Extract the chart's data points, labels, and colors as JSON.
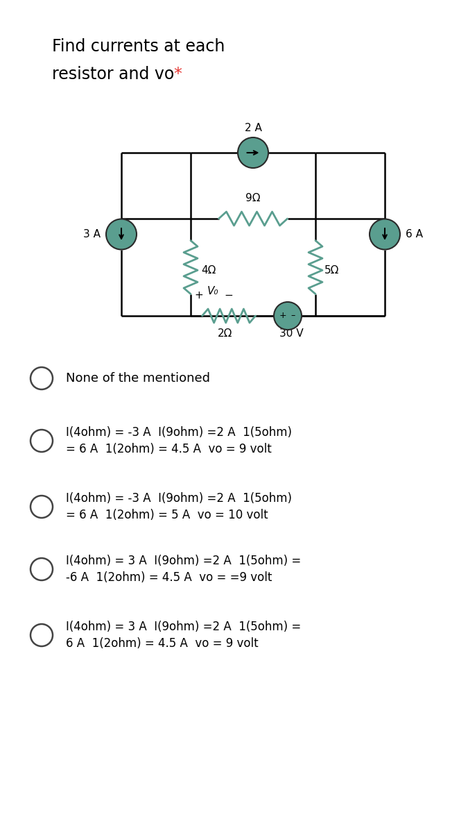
{
  "title_line1": "Find currents at each",
  "title_line2": "resistor and vo ",
  "title_star": "*",
  "bg_color": "#ffffff",
  "node_color": "#5a9e8f",
  "wire_color": "#000000",
  "label_2A": "2 A",
  "label_9ohm": "9Ω",
  "label_4ohm": "4Ω",
  "label_5ohm": "5Ω",
  "label_2ohm": "2Ω",
  "label_3A": "3 A",
  "label_6A": "6 A",
  "label_30V": "30 V",
  "options": [
    {
      "text_line1": "None of the mentioned",
      "text_line2": ""
    },
    {
      "text_line1": "I(4ohm) = -3 A  I(9ohm) =2 A  1(5ohm)",
      "text_line2": "= 6 A  1(2ohm) = 4.5 A  vo = 9 volt"
    },
    {
      "text_line1": "I(4ohm) = -3 A  I(9ohm) =2 A  1(5ohm)",
      "text_line2": "= 6 A  1(2ohm) = 5 A  vo = 10 volt"
    },
    {
      "text_line1": "I(4ohm) = 3 A  I(9ohm) =2 A  1(5ohm) =",
      "text_line2": "-6 A  1(2ohm) = 4.5 A  vo = =9 volt"
    },
    {
      "text_line1": "I(4ohm) = 3 A  I(9ohm) =2 A  1(5ohm) =",
      "text_line2": "6 A  1(2ohm) = 4.5 A  vo = 9 volt"
    }
  ]
}
